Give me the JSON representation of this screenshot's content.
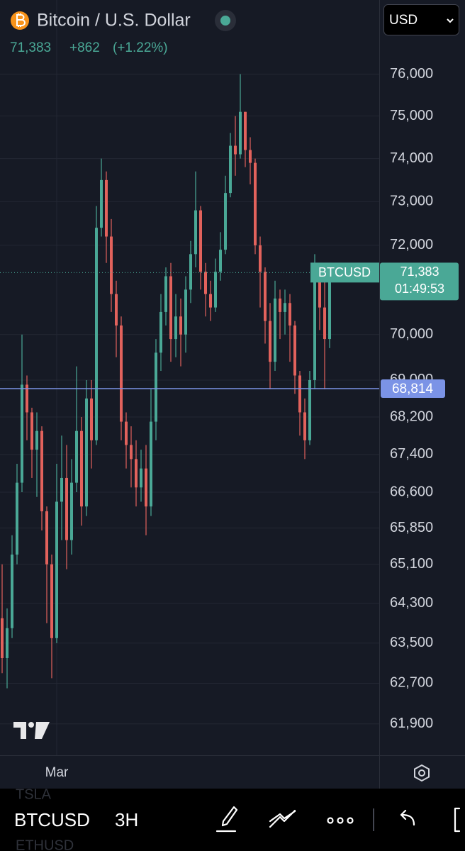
{
  "header": {
    "symbol": "Bitcoin / U.S. Dollar",
    "price": "71,383",
    "change": "+862",
    "change_pct": "(+1.22%)",
    "currency": "USD"
  },
  "chart_data": {
    "type": "candlestick",
    "log": true,
    "grid": true,
    "up_color": "#4aa896",
    "down_color": "#e2625c",
    "categories": [
      null,
      null,
      null,
      null,
      null,
      null,
      null,
      null,
      null,
      null,
      null,
      "Mar",
      null,
      null,
      null,
      null,
      null,
      null,
      null,
      null,
      null,
      null,
      null,
      null,
      null,
      null,
      null,
      null,
      null,
      null,
      null,
      null,
      null,
      null,
      null,
      null,
      null,
      null,
      null,
      null,
      null,
      null,
      null,
      null,
      null,
      null,
      null,
      null,
      null,
      null,
      null,
      null,
      null,
      null,
      null,
      null,
      null,
      null,
      null,
      null,
      null,
      null,
      null,
      null,
      null,
      null,
      null
    ],
    "open": [
      64000,
      63200,
      63800,
      65300,
      66800,
      68900,
      68300,
      67500,
      67900,
      66200,
      65100,
      63600,
      66400,
      66900,
      65600,
      66800,
      67900,
      66300,
      68600,
      67700,
      72400,
      73500,
      72200,
      70900,
      70200,
      68100,
      67600,
      67300,
      66700,
      67100,
      66300,
      68100,
      69600,
      70500,
      71300,
      69900,
      70400,
      70000,
      71000,
      71800,
      72800,
      71400,
      70900,
      70600,
      71400,
      71900,
      73200,
      74300,
      74100,
      75100,
      74200,
      73900,
      72000,
      71400,
      70300,
      69400,
      70800,
      70500,
      70700,
      70200,
      69100,
      68300,
      67700,
      69000,
      71300,
      70600,
      69900
    ],
    "high": [
      65100,
      64200,
      65700,
      67200,
      70000,
      69100,
      68400,
      68300,
      68000,
      66300,
      65300,
      67200,
      67800,
      67600,
      67300,
      69300,
      68200,
      69000,
      69000,
      72900,
      74000,
      73700,
      72600,
      71200,
      70400,
      68300,
      68000,
      67700,
      67500,
      67600,
      68800,
      69900,
      70900,
      71500,
      71600,
      70900,
      70800,
      71300,
      72100,
      73700,
      72900,
      71600,
      71200,
      71700,
      72300,
      73600,
      74600,
      75000,
      76000,
      75100,
      74500,
      74000,
      72200,
      71500,
      70700,
      71200,
      71000,
      71000,
      70900,
      70300,
      69200,
      68600,
      69200,
      71800,
      71600,
      71200,
      71500
    ],
    "low": [
      62900,
      62600,
      63600,
      65100,
      66600,
      67700,
      66900,
      66500,
      65800,
      63900,
      62800,
      63500,
      65600,
      65000,
      65300,
      66600,
      65900,
      66100,
      67100,
      67600,
      72200,
      71600,
      70500,
      69500,
      67700,
      67100,
      66700,
      66300,
      66400,
      65700,
      66100,
      67700,
      69200,
      70200,
      69400,
      69500,
      69300,
      69600,
      70700,
      71500,
      71000,
      70400,
      70300,
      70500,
      71200,
      71800,
      73100,
      73600,
      74000,
      73800,
      73400,
      71800,
      70600,
      69800,
      68800,
      69200,
      69900,
      70000,
      69400,
      68700,
      67800,
      67300,
      67600,
      68800,
      70100,
      68800,
      69700
    ],
    "close": [
      63200,
      63800,
      65300,
      66800,
      68900,
      68300,
      67500,
      67900,
      66200,
      65100,
      63600,
      66400,
      66900,
      65600,
      66800,
      67900,
      66300,
      68600,
      67700,
      72400,
      73500,
      72200,
      70900,
      70200,
      68100,
      67600,
      67300,
      66700,
      67100,
      66300,
      68100,
      69600,
      70500,
      71300,
      69900,
      70400,
      70000,
      71000,
      71800,
      72800,
      71400,
      70900,
      70600,
      71400,
      71900,
      73200,
      74300,
      74100,
      75100,
      74200,
      73900,
      72000,
      71400,
      70300,
      69400,
      70800,
      70500,
      70700,
      70200,
      69100,
      68300,
      67700,
      69000,
      71300,
      70600,
      69900,
      71383
    ],
    "ylim": [
      61290,
      77800
    ],
    "yticks": [
      {
        "value": 61900,
        "label": "61,900"
      },
      {
        "value": 62700,
        "label": "62,700"
      },
      {
        "value": 63500,
        "label": "63,500"
      },
      {
        "value": 64300,
        "label": "64,300"
      },
      {
        "value": 65100,
        "label": "65,100"
      },
      {
        "value": 65850,
        "label": "65,850"
      },
      {
        "value": 66600,
        "label": "66,600"
      },
      {
        "value": 67400,
        "label": "67,400"
      },
      {
        "value": 68200,
        "label": "68,200"
      },
      {
        "value": 69000,
        "label": "69,000"
      },
      {
        "value": 70000,
        "label": "70,000"
      },
      {
        "value": 72000,
        "label": "72,000"
      },
      {
        "value": 73000,
        "label": "73,000"
      },
      {
        "value": 74000,
        "label": "74,000"
      },
      {
        "value": 75000,
        "label": "75,000"
      },
      {
        "value": 76000,
        "label": "76,000"
      }
    ],
    "last": {
      "value": 71383,
      "label": "71,383",
      "symbol": "BTCUSD",
      "countdown": "01:49:53",
      "color": "#4aa896"
    },
    "price_line": {
      "value": 68814,
      "label": "68,814",
      "color": "#7b93e6"
    }
  },
  "toolbar": {
    "symbol": "BTCUSD",
    "interval": "3H",
    "prev_symbol": "TSLA",
    "next_symbol": "ETHUSD"
  }
}
